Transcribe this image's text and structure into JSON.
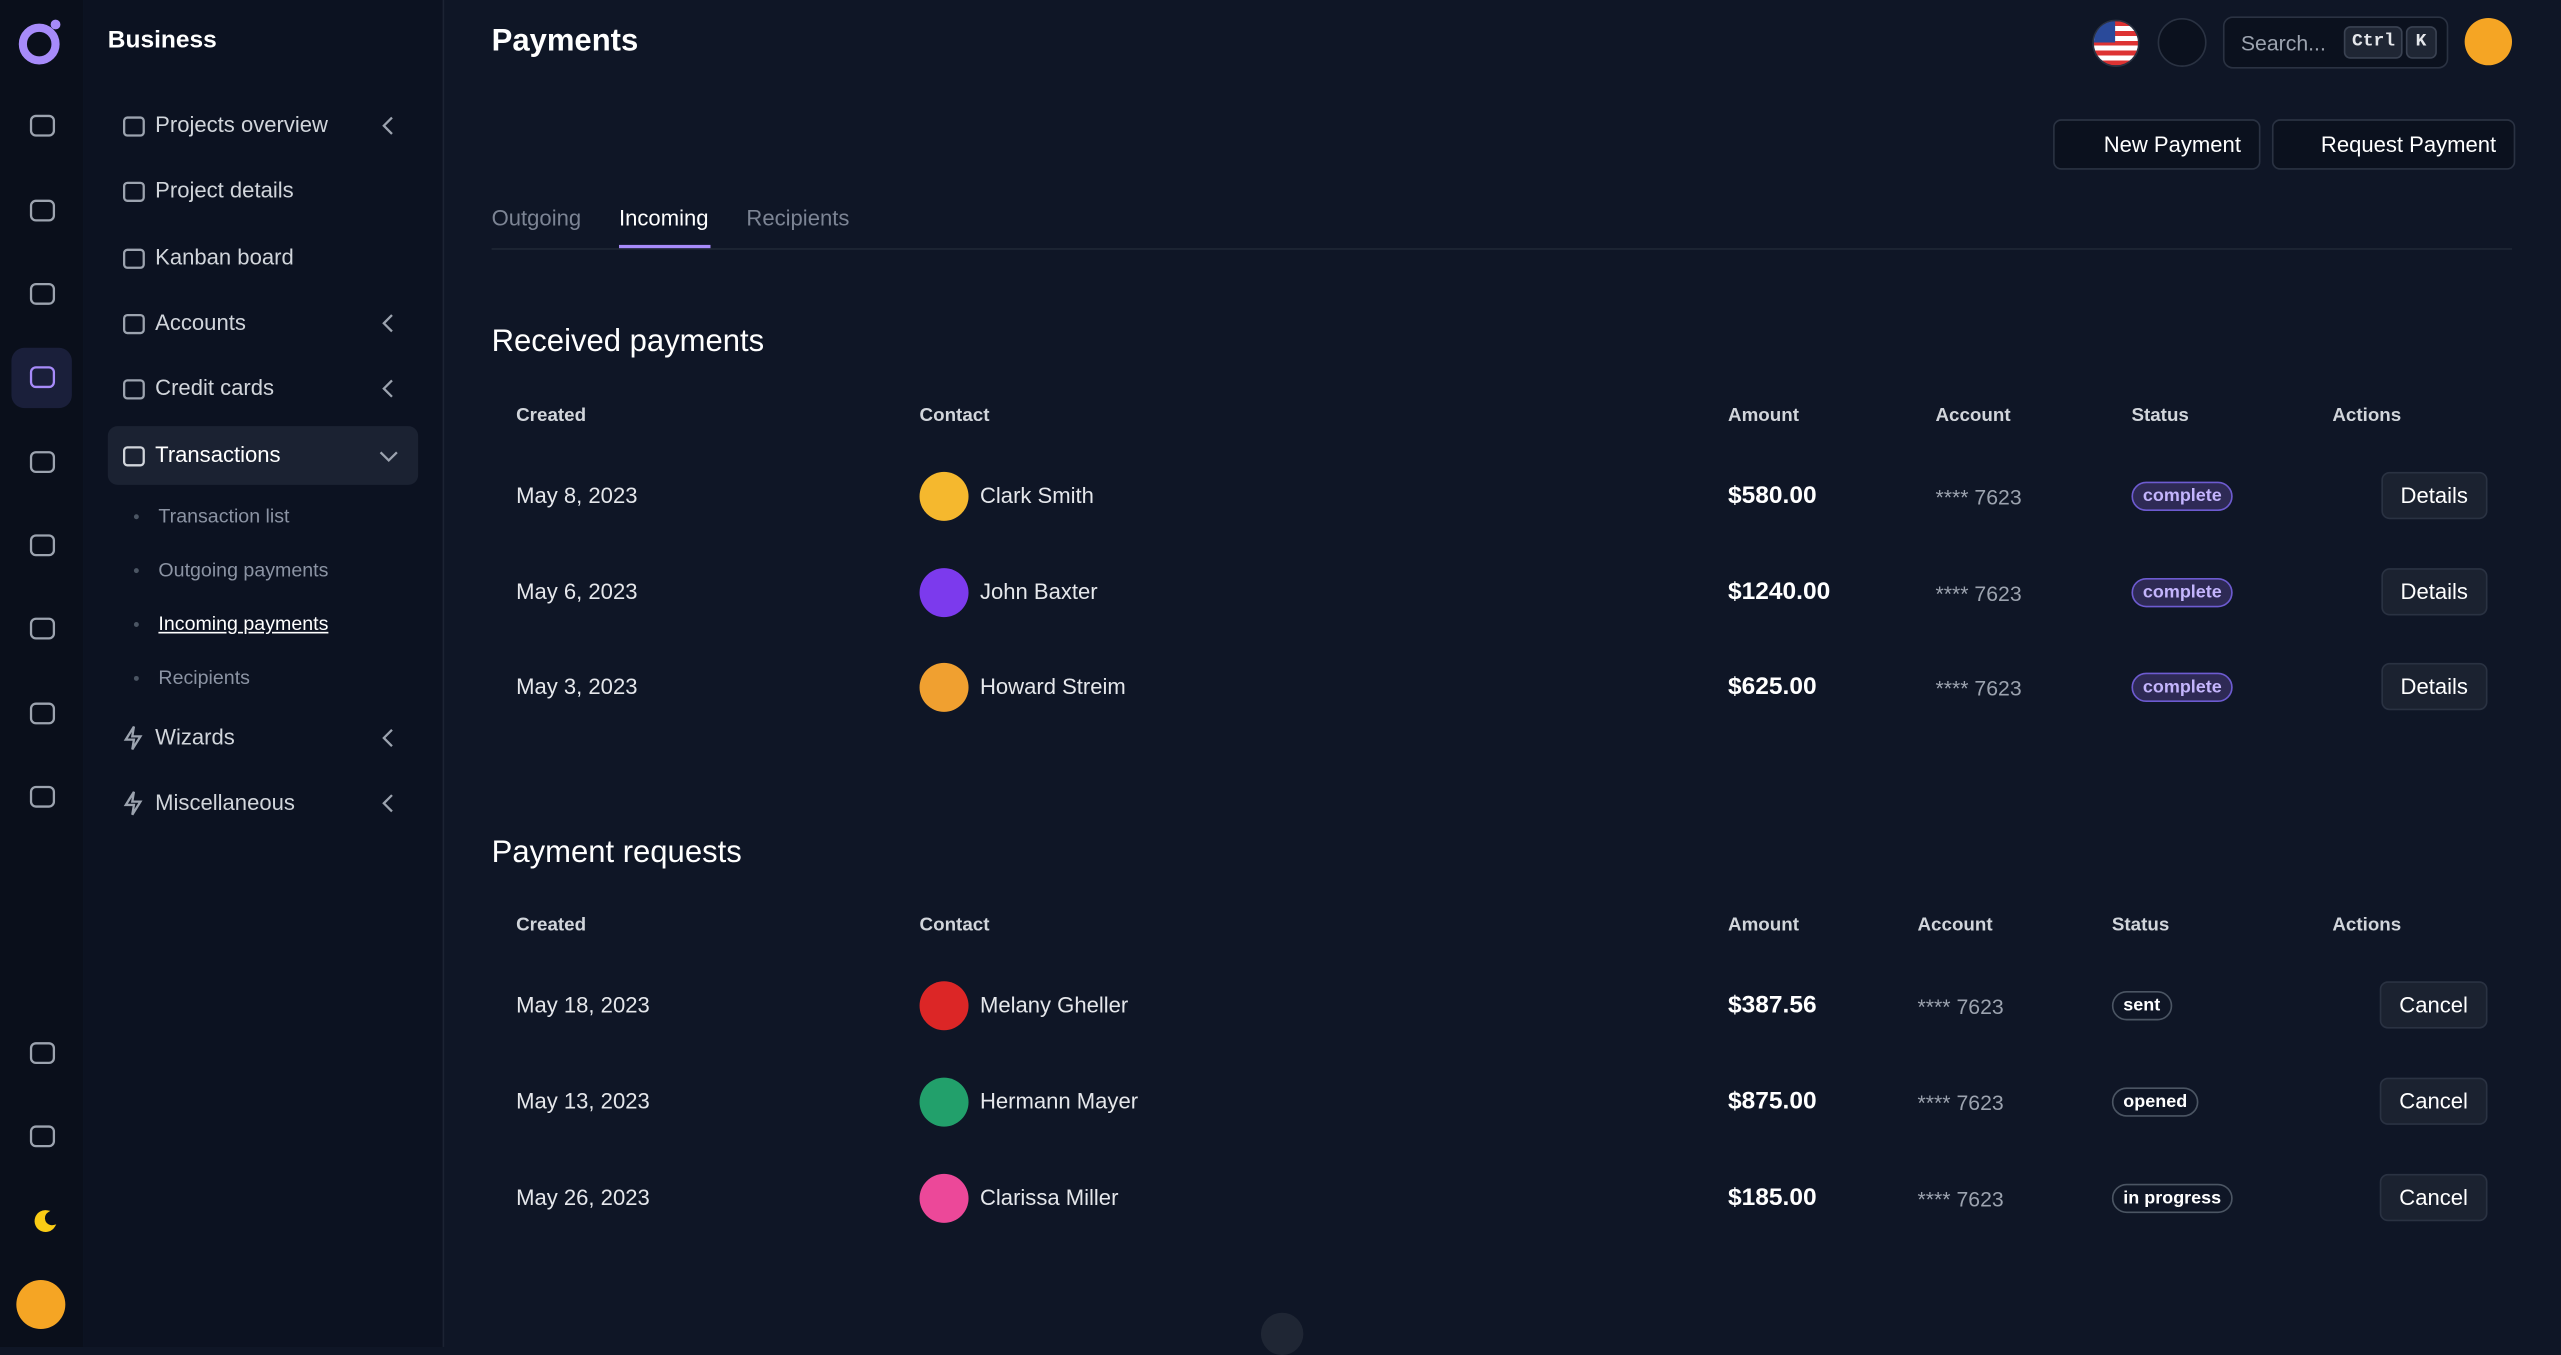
{
  "header": {
    "title": "Payments",
    "search": "Search...",
    "shortcut": [
      "Ctrl",
      "K"
    ]
  },
  "sidebar": {
    "brand": "Business",
    "items": [
      "Projects overview",
      "Project details",
      "Kanban board",
      "Accounts",
      "Credit cards",
      "Transactions"
    ],
    "subitems": [
      "Transaction list",
      "Outgoing payments",
      "Incoming payments",
      "Recipients"
    ],
    "items_after": [
      "Wizards",
      "Miscellaneous"
    ]
  },
  "buttons": [
    "New Payment",
    "Request Payment"
  ],
  "tabs": [
    "Outgoing",
    "Incoming",
    "Recipients"
  ],
  "sections": [
    {
      "title": "Received payments",
      "columns": [
        "Created",
        "Contact",
        "Amount",
        "Account",
        "Status",
        "Actions"
      ],
      "rows": [
        [
          "May 8, 2023",
          "Clark Smith",
          "$580.00",
          "**** 7623",
          "complete",
          "Details"
        ],
        [
          "May 6, 2023",
          "John Baxter",
          "$1240.00",
          "**** 7623",
          "complete",
          "Details"
        ],
        [
          "May 3, 2023",
          "Howard Streim",
          "$625.00",
          "**** 7623",
          "complete",
          "Details"
        ]
      ]
    },
    {
      "title": "Payment requests",
      "columns": [
        "Created",
        "Contact",
        "Amount",
        "Account",
        "Status",
        "Actions"
      ],
      "rows": [
        [
          "May 18, 2023",
          "Melany Gheller",
          "$387.56",
          "**** 7623",
          "sent",
          "Cancel"
        ],
        [
          "May 13, 2023",
          "Hermann Mayer",
          "$875.00",
          "**** 7623",
          "opened",
          "Cancel"
        ],
        [
          "May 26, 2023",
          "Clarissa Miller",
          "$185.00",
          "**** 7623",
          "in progress",
          "Cancel"
        ]
      ]
    }
  ]
}
